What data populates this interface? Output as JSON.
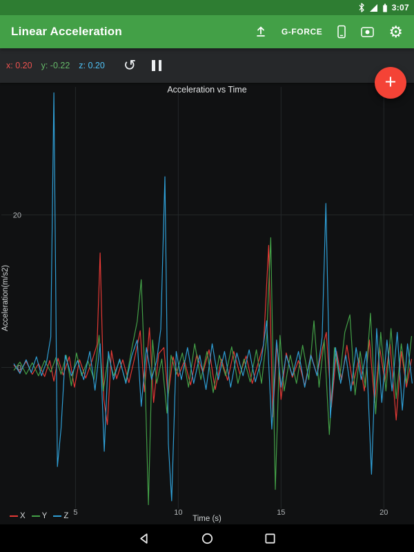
{
  "status_bar": {
    "time": "3:07",
    "icons": [
      "bluetooth-icon",
      "signal-icon",
      "battery-icon"
    ]
  },
  "app_bar": {
    "title": "Linear Acceleration",
    "gforce_label": "G-FORCE",
    "settings_glyph": "⚙",
    "icons": [
      "upload-icon",
      "device-icon",
      "record-icon",
      "gear-icon"
    ]
  },
  "toolbar": {
    "reset_glyph": "↺",
    "readouts": [
      {
        "axis": "x",
        "label": "x:",
        "value": "0.20",
        "color": "#ef5350"
      },
      {
        "axis": "y",
        "label": "y:",
        "value": "-0.22",
        "color": "#66bb6a"
      },
      {
        "axis": "z",
        "label": "z:",
        "value": "0.20",
        "color": "#4fc3f7"
      }
    ]
  },
  "fab": {
    "label": "+",
    "color": "#f44336"
  },
  "chart_data": {
    "type": "line",
    "title": "Acceleration vs Time",
    "xlabel": "Time (s)",
    "ylabel": "Acceleration(m/s2)",
    "x_ticks": [
      5,
      10,
      15,
      20
    ],
    "y_ticks": [
      0,
      20
    ],
    "xlim": [
      2.0,
      21.4
    ],
    "ylim": [
      -18.5,
      35.5
    ],
    "grid": true,
    "legend_position": "bottom-left",
    "background": "#101112",
    "series": [
      {
        "name": "X",
        "color": "#e53935",
        "points": [
          [
            2.0,
            0.3
          ],
          [
            2.3,
            -0.6
          ],
          [
            2.6,
            0.8
          ],
          [
            2.9,
            -0.9
          ],
          [
            3.2,
            0.5
          ],
          [
            3.5,
            -1.2
          ],
          [
            3.75,
            0.9
          ],
          [
            3.95,
            -1.8
          ],
          [
            4.15,
            1.2
          ],
          [
            4.4,
            -1.0
          ],
          [
            4.7,
            1.4
          ],
          [
            4.95,
            -2.6
          ],
          [
            5.2,
            1.0
          ],
          [
            5.5,
            -1.4
          ],
          [
            5.8,
            0.8
          ],
          [
            6.05,
            3.0
          ],
          [
            6.2,
            15.0
          ],
          [
            6.38,
            -4.2
          ],
          [
            6.55,
            -7.5
          ],
          [
            6.75,
            2.2
          ],
          [
            7.0,
            -1.5
          ],
          [
            7.3,
            1.0
          ],
          [
            7.6,
            -2.0
          ],
          [
            7.9,
            1.5
          ],
          [
            8.15,
            4.8
          ],
          [
            8.35,
            -3.2
          ],
          [
            8.6,
            5.2
          ],
          [
            8.8,
            -4.6
          ],
          [
            9.05,
            1.8
          ],
          [
            9.3,
            2.6
          ],
          [
            9.5,
            -3.8
          ],
          [
            9.75,
            1.4
          ],
          [
            10.0,
            -1.2
          ],
          [
            10.3,
            0.9
          ],
          [
            10.6,
            -2.3
          ],
          [
            10.9,
            1.7
          ],
          [
            11.2,
            -0.7
          ],
          [
            11.5,
            2.3
          ],
          [
            11.8,
            -2.9
          ],
          [
            12.1,
            1.1
          ],
          [
            12.4,
            -1.7
          ],
          [
            12.7,
            2.1
          ],
          [
            13.0,
            -0.9
          ],
          [
            13.3,
            1.5
          ],
          [
            13.6,
            -2.1
          ],
          [
            13.9,
            0.7
          ],
          [
            14.15,
            3.0
          ],
          [
            14.4,
            16.0
          ],
          [
            14.6,
            -6.5
          ],
          [
            14.8,
            3.2
          ],
          [
            15.0,
            -4.2
          ],
          [
            15.25,
            1.9
          ],
          [
            15.55,
            -1.3
          ],
          [
            15.85,
            0.9
          ],
          [
            16.15,
            -2.4
          ],
          [
            16.45,
            1.7
          ],
          [
            16.75,
            -1.0
          ],
          [
            17.0,
            2.4
          ],
          [
            17.2,
            4.6
          ],
          [
            17.45,
            -5.2
          ],
          [
            17.7,
            2.1
          ],
          [
            17.95,
            -1.6
          ],
          [
            18.2,
            2.9
          ],
          [
            18.5,
            -2.3
          ],
          [
            18.8,
            1.3
          ],
          [
            19.05,
            -3.1
          ],
          [
            19.3,
            3.6
          ],
          [
            19.55,
            -4.6
          ],
          [
            19.8,
            2.6
          ],
          [
            20.05,
            -1.9
          ],
          [
            20.3,
            3.1
          ],
          [
            20.6,
            -6.9
          ],
          [
            20.85,
            2.1
          ],
          [
            21.1,
            -2.6
          ],
          [
            21.35,
            1.1
          ]
        ]
      },
      {
        "name": "Y",
        "color": "#43a047",
        "points": [
          [
            2.0,
            -0.4
          ],
          [
            2.3,
            0.7
          ],
          [
            2.6,
            -0.9
          ],
          [
            2.9,
            0.6
          ],
          [
            3.2,
            -1.1
          ],
          [
            3.5,
            0.9
          ],
          [
            3.8,
            -0.6
          ],
          [
            4.05,
            1.3
          ],
          [
            4.3,
            -0.9
          ],
          [
            4.55,
            1.6
          ],
          [
            4.8,
            -2.4
          ],
          [
            5.05,
            1.9
          ],
          [
            5.3,
            -1.1
          ],
          [
            5.6,
            0.9
          ],
          [
            5.9,
            -1.6
          ],
          [
            6.15,
            4.2
          ],
          [
            6.35,
            -3.1
          ],
          [
            6.6,
            1.6
          ],
          [
            6.85,
            -1.1
          ],
          [
            7.15,
            0.9
          ],
          [
            7.45,
            -1.9
          ],
          [
            7.75,
            2.6
          ],
          [
            8.0,
            6.0
          ],
          [
            8.2,
            11.5
          ],
          [
            8.4,
            -3.0
          ],
          [
            8.55,
            -18.0
          ],
          [
            8.75,
            3.6
          ],
          [
            8.95,
            -2.1
          ],
          [
            9.2,
            1.1
          ],
          [
            9.45,
            -6.0
          ],
          [
            9.65,
            1.6
          ],
          [
            9.9,
            -0.9
          ],
          [
            10.2,
            1.9
          ],
          [
            10.5,
            -2.6
          ],
          [
            10.8,
            3.1
          ],
          [
            11.1,
            -1.6
          ],
          [
            11.4,
            2.1
          ],
          [
            11.7,
            -3.3
          ],
          [
            12.0,
            1.6
          ],
          [
            12.3,
            -1.1
          ],
          [
            12.6,
            2.7
          ],
          [
            12.9,
            -2.1
          ],
          [
            13.2,
            1.1
          ],
          [
            13.5,
            -1.9
          ],
          [
            13.8,
            2.3
          ],
          [
            14.05,
            -2.1
          ],
          [
            14.3,
            4.0
          ],
          [
            14.5,
            17.0
          ],
          [
            14.72,
            -16.0
          ],
          [
            14.95,
            4.2
          ],
          [
            15.15,
            -3.1
          ],
          [
            15.45,
            1.6
          ],
          [
            15.75,
            -2.1
          ],
          [
            16.05,
            2.9
          ],
          [
            16.35,
            -1.6
          ],
          [
            16.6,
            6.1
          ],
          [
            16.85,
            -2.6
          ],
          [
            17.1,
            3.6
          ],
          [
            17.35,
            -8.8
          ],
          [
            17.6,
            2.6
          ],
          [
            17.85,
            -1.6
          ],
          [
            18.1,
            4.6
          ],
          [
            18.35,
            6.9
          ],
          [
            18.6,
            -3.6
          ],
          [
            18.85,
            2.1
          ],
          [
            19.1,
            -2.6
          ],
          [
            19.35,
            7.1
          ],
          [
            19.6,
            -6.1
          ],
          [
            19.85,
            4.6
          ],
          [
            20.1,
            -3.1
          ],
          [
            20.35,
            5.1
          ],
          [
            20.6,
            -4.1
          ],
          [
            20.85,
            3.1
          ],
          [
            21.1,
            -2.1
          ],
          [
            21.35,
            4.1
          ]
        ]
      },
      {
        "name": "Z",
        "color": "#2f9fd6",
        "points": [
          [
            2.0,
            0.5
          ],
          [
            2.3,
            -0.8
          ],
          [
            2.6,
            1.0
          ],
          [
            2.85,
            -0.7
          ],
          [
            3.1,
            1.4
          ],
          [
            3.35,
            -1.1
          ],
          [
            3.6,
            0.8
          ],
          [
            3.8,
            4.0
          ],
          [
            3.95,
            36.0
          ],
          [
            4.12,
            -13.0
          ],
          [
            4.3,
            -8.0
          ],
          [
            4.5,
            1.6
          ],
          [
            4.8,
            -1.1
          ],
          [
            5.1,
            0.9
          ],
          [
            5.4,
            -1.6
          ],
          [
            5.7,
            2.1
          ],
          [
            5.95,
            -3.0
          ],
          [
            6.2,
            3.1
          ],
          [
            6.4,
            -11.0
          ],
          [
            6.6,
            2.1
          ],
          [
            6.85,
            -1.6
          ],
          [
            7.15,
            1.1
          ],
          [
            7.45,
            -2.1
          ],
          [
            7.75,
            1.6
          ],
          [
            8.0,
            3.6
          ],
          [
            8.2,
            -5.1
          ],
          [
            8.45,
            2.6
          ],
          [
            8.7,
            -1.6
          ],
          [
            8.95,
            0.9
          ],
          [
            9.15,
            5.0
          ],
          [
            9.35,
            25.0
          ],
          [
            9.52,
            -10.0
          ],
          [
            9.68,
            -17.5
          ],
          [
            9.9,
            2.1
          ],
          [
            10.15,
            -1.6
          ],
          [
            10.45,
            2.6
          ],
          [
            10.75,
            -2.1
          ],
          [
            11.05,
            1.6
          ],
          [
            11.35,
            -2.9
          ],
          [
            11.65,
            3.1
          ],
          [
            11.95,
            -1.6
          ],
          [
            12.25,
            2.1
          ],
          [
            12.55,
            -2.6
          ],
          [
            12.85,
            1.9
          ],
          [
            13.15,
            -1.1
          ],
          [
            13.45,
            2.3
          ],
          [
            13.75,
            -1.9
          ],
          [
            14.05,
            1.1
          ],
          [
            14.3,
            6.1
          ],
          [
            14.55,
            -8.1
          ],
          [
            14.78,
            3.6
          ],
          [
            15.0,
            -2.6
          ],
          [
            15.25,
            1.6
          ],
          [
            15.55,
            -1.1
          ],
          [
            15.85,
            2.1
          ],
          [
            16.15,
            -2.6
          ],
          [
            16.45,
            1.6
          ],
          [
            16.75,
            -1.1
          ],
          [
            17.0,
            4.0
          ],
          [
            17.18,
            21.5
          ],
          [
            17.4,
            -6.6
          ],
          [
            17.65,
            2.6
          ],
          [
            17.9,
            -2.1
          ],
          [
            18.15,
            1.6
          ],
          [
            18.4,
            -3.1
          ],
          [
            18.65,
            2.6
          ],
          [
            18.9,
            -1.6
          ],
          [
            19.15,
            2.1
          ],
          [
            19.4,
            -14.0
          ],
          [
            19.65,
            5.1
          ],
          [
            19.9,
            -4.6
          ],
          [
            20.15,
            3.6
          ],
          [
            20.4,
            -3.1
          ],
          [
            20.65,
            4.6
          ],
          [
            20.9,
            -5.6
          ],
          [
            21.15,
            3.1
          ],
          [
            21.38,
            -2.1
          ]
        ]
      }
    ]
  },
  "nav_bar": {
    "icons": [
      "back-icon",
      "home-icon",
      "recents-icon"
    ]
  }
}
